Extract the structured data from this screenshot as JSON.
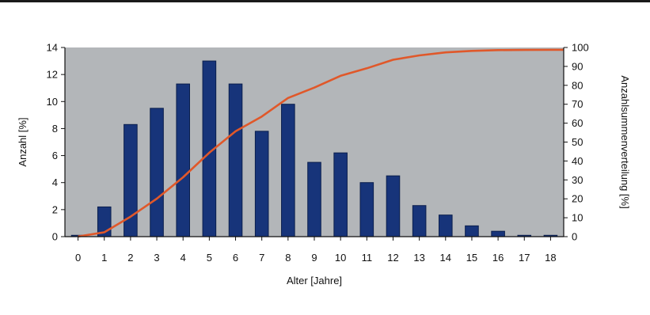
{
  "chart_data": {
    "type": "bar",
    "title": "",
    "categories": [
      "0",
      "1",
      "2",
      "3",
      "4",
      "5",
      "6",
      "7",
      "8",
      "9",
      "10",
      "11",
      "12",
      "13",
      "14",
      "15",
      "16",
      "17",
      "18"
    ],
    "series": [
      {
        "axis": "left",
        "type": "bar",
        "values": [
          0.1,
          2.2,
          8.3,
          9.5,
          11.3,
          13.0,
          11.3,
          7.8,
          9.8,
          5.5,
          6.2,
          4.0,
          4.5,
          2.3,
          1.6,
          0.8,
          0.4,
          0.1,
          0.1
        ],
        "color": "#17347a"
      },
      {
        "axis": "right",
        "type": "line",
        "values": [
          0.1,
          2.3,
          10.6,
          20.1,
          31.4,
          44.4,
          55.7,
          63.5,
          73.3,
          78.8,
          85.0,
          89.0,
          93.5,
          95.8,
          97.4,
          98.2,
          98.6,
          98.7,
          98.8
        ],
        "color": "#e0582a"
      }
    ],
    "xlabel": "Alter [Jahre]",
    "ylabel": "Anzahl [%]",
    "ylabel_right": "Anzahlsummenverteilung [%]",
    "ylim": [
      0,
      14
    ],
    "ylim_right": [
      0,
      100
    ],
    "yticks": [
      "0",
      "2",
      "4",
      "6",
      "8",
      "10",
      "12",
      "14"
    ],
    "yticks_right": [
      "0",
      "10",
      "20",
      "30",
      "40",
      "50",
      "60",
      "70",
      "80",
      "90",
      "100"
    ],
    "plot_background": "#b3b6b9",
    "grid": false,
    "legend": "none"
  }
}
